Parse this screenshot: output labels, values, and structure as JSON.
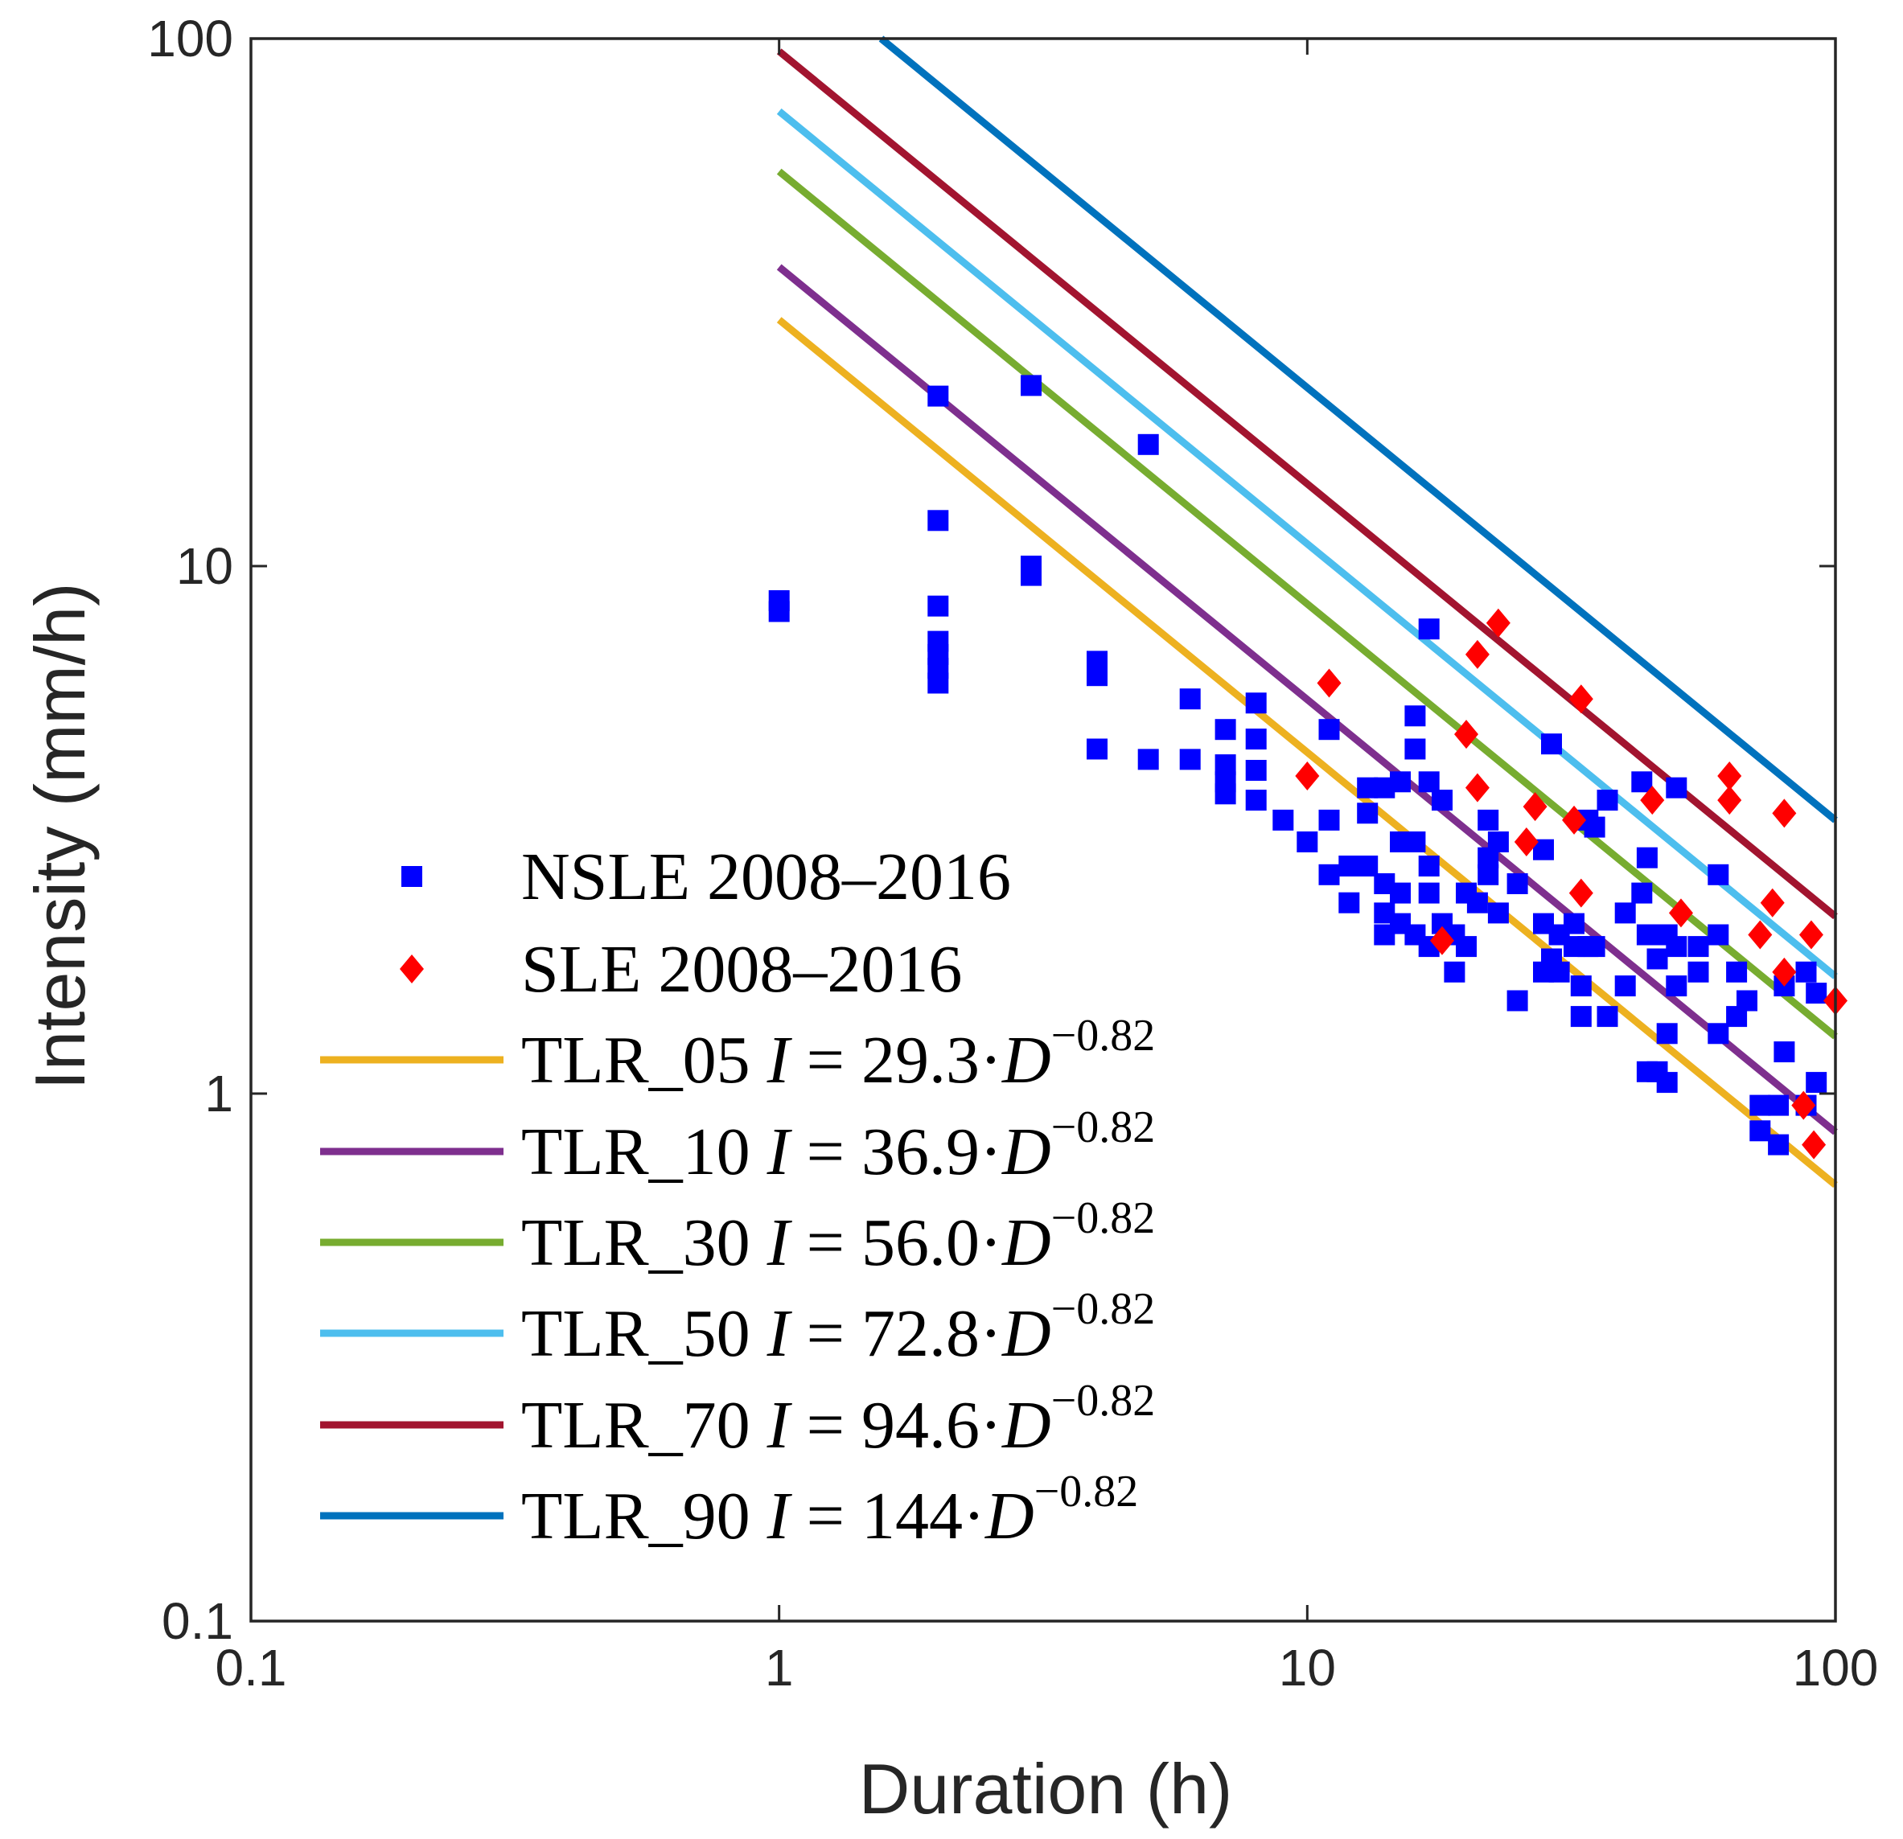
{
  "chart_data": {
    "type": "scatter",
    "title": "",
    "xlabel": "Duration (h)",
    "ylabel": "Intensity (mm/h)",
    "x_scale": "log",
    "y_scale": "log",
    "xlim": [
      0.1,
      100
    ],
    "ylim": [
      0.1,
      100
    ],
    "x_ticks": [
      "0.1",
      "1",
      "10",
      "100"
    ],
    "y_ticks": [
      "0.1",
      "1",
      "10",
      "100"
    ],
    "legend_position": "bottom-left",
    "scatter_series": [
      {
        "name": "NSLE 2008–2016",
        "marker": "square",
        "color": "#0000ff",
        "points": [
          [
            1,
            8.2
          ],
          [
            1,
            8.6
          ],
          [
            2,
            21
          ],
          [
            2,
            12.2
          ],
          [
            2,
            8.4
          ],
          [
            2,
            7.2
          ],
          [
            2,
            6.8
          ],
          [
            2,
            6.4
          ],
          [
            2,
            6.0
          ],
          [
            3,
            22
          ],
          [
            3,
            10
          ],
          [
            3,
            9.6
          ],
          [
            4,
            6.6
          ],
          [
            4,
            6.2
          ],
          [
            4,
            4.5
          ],
          [
            5,
            17
          ],
          [
            5,
            4.3
          ],
          [
            6,
            5.6
          ],
          [
            6,
            4.3
          ],
          [
            7,
            4.9
          ],
          [
            7,
            4.2
          ],
          [
            7,
            3.9
          ],
          [
            7,
            3.7
          ],
          [
            8,
            5.5
          ],
          [
            8,
            4.7
          ],
          [
            8,
            4.1
          ],
          [
            8,
            3.6
          ],
          [
            9,
            3.3
          ],
          [
            10,
            3.0
          ],
          [
            11,
            4.9
          ],
          [
            11,
            3.3
          ],
          [
            11,
            2.6
          ],
          [
            12,
            2.7
          ],
          [
            12,
            2.3
          ],
          [
            13,
            3.8
          ],
          [
            13,
            3.4
          ],
          [
            13,
            2.7
          ],
          [
            14,
            3.8
          ],
          [
            14,
            2.5
          ],
          [
            14,
            2.2
          ],
          [
            14,
            2.0
          ],
          [
            15,
            3.9
          ],
          [
            15,
            3.0
          ],
          [
            15,
            2.4
          ],
          [
            15,
            2.1
          ],
          [
            16,
            5.2
          ],
          [
            16,
            4.5
          ],
          [
            16,
            3.0
          ],
          [
            16,
            2.0
          ],
          [
            17,
            7.6
          ],
          [
            17,
            3.9
          ],
          [
            17,
            2.7
          ],
          [
            17,
            2.4
          ],
          [
            17,
            1.9
          ],
          [
            18,
            3.6
          ],
          [
            18,
            2.1
          ],
          [
            19,
            2.0
          ],
          [
            19,
            1.7
          ],
          [
            20,
            2.4
          ],
          [
            20,
            1.9
          ],
          [
            21,
            2.3
          ],
          [
            22,
            3.3
          ],
          [
            22,
            2.8
          ],
          [
            22,
            2.6
          ],
          [
            23,
            3.0
          ],
          [
            23,
            2.2
          ],
          [
            25,
            2.5
          ],
          [
            25,
            1.5
          ],
          [
            28,
            2.9
          ],
          [
            28,
            2.1
          ],
          [
            28,
            1.7
          ],
          [
            29,
            4.6
          ],
          [
            29,
            1.8
          ],
          [
            30,
            2.0
          ],
          [
            30,
            1.7
          ],
          [
            32,
            2.1
          ],
          [
            32,
            1.9
          ],
          [
            33,
            1.6
          ],
          [
            33,
            1.4
          ],
          [
            34,
            3.3
          ],
          [
            34,
            1.9
          ],
          [
            35,
            3.2
          ],
          [
            35,
            1.9
          ],
          [
            37,
            3.6
          ],
          [
            37,
            1.4
          ],
          [
            40,
            2.2
          ],
          [
            40,
            1.6
          ],
          [
            43,
            3.9
          ],
          [
            43,
            2.4
          ],
          [
            44,
            2.8
          ],
          [
            44,
            2.0
          ],
          [
            44,
            1.1
          ],
          [
            46,
            1.8
          ],
          [
            46,
            1.1
          ],
          [
            48,
            2.0
          ],
          [
            48,
            1.3
          ],
          [
            48,
            1.05
          ],
          [
            50,
            3.8
          ],
          [
            50,
            1.9
          ],
          [
            50,
            1.6
          ],
          [
            55,
            1.9
          ],
          [
            55,
            1.7
          ],
          [
            60,
            2.6
          ],
          [
            60,
            2.0
          ],
          [
            60,
            1.3
          ],
          [
            65,
            1.7
          ],
          [
            65,
            1.4
          ],
          [
            68,
            1.5
          ],
          [
            72,
            0.95
          ],
          [
            72,
            0.85
          ],
          [
            78,
            0.8
          ],
          [
            78,
            0.95
          ],
          [
            80,
            1.2
          ],
          [
            80,
            1.6
          ],
          [
            88,
            1.7
          ],
          [
            88,
            0.95
          ],
          [
            92,
            1.05
          ],
          [
            92,
            1.55
          ]
        ]
      },
      {
        "name": "SLE 2008–2016",
        "marker": "diamond",
        "color": "#ff0000",
        "points": [
          [
            10,
            4.0
          ],
          [
            11,
            6.0
          ],
          [
            18,
            1.95
          ],
          [
            20,
            4.8
          ],
          [
            21,
            6.8
          ],
          [
            21,
            3.8
          ],
          [
            23,
            7.8
          ],
          [
            26,
            3.0
          ],
          [
            27,
            3.5
          ],
          [
            32,
            3.3
          ],
          [
            33,
            2.4
          ],
          [
            33,
            5.6
          ],
          [
            45,
            3.6
          ],
          [
            51,
            2.2
          ],
          [
            63,
            4.0
          ],
          [
            63,
            3.6
          ],
          [
            72,
            2.0
          ],
          [
            76,
            2.3
          ],
          [
            80,
            3.4
          ],
          [
            80,
            1.7
          ],
          [
            87,
            0.95
          ],
          [
            90,
            2.0
          ],
          [
            91,
            0.8
          ],
          [
            100,
            1.5
          ]
        ]
      }
    ],
    "line_series": [
      {
        "name": "TLR_05",
        "coefficient": 29.3,
        "coef_label": "29.3",
        "exponent": -0.82,
        "exp_label": "−0.82",
        "color": "#EDB120",
        "x_range": [
          1,
          100
        ]
      },
      {
        "name": "TLR_10",
        "coefficient": 36.9,
        "coef_label": "36.9",
        "exponent": -0.82,
        "exp_label": "−0.82",
        "color": "#7E2F8E",
        "x_range": [
          1,
          100
        ]
      },
      {
        "name": "TLR_30",
        "coefficient": 56.0,
        "coef_label": "56.0",
        "exponent": -0.82,
        "exp_label": "−0.82",
        "color": "#77AC30",
        "x_range": [
          1,
          100
        ]
      },
      {
        "name": "TLR_50",
        "coefficient": 72.8,
        "coef_label": "72.8",
        "exponent": -0.82,
        "exp_label": "−0.82",
        "color": "#4DBEEE",
        "x_range": [
          1,
          100
        ]
      },
      {
        "name": "TLR_70",
        "coefficient": 94.6,
        "coef_label": "94.6",
        "exponent": -0.82,
        "exp_label": "−0.82",
        "color": "#A2142F",
        "x_range": [
          1,
          100
        ]
      },
      {
        "name": "TLR_90",
        "coefficient": 144,
        "coef_label": "144",
        "exponent": -0.82,
        "exp_label": "−0.82",
        "color": "#0072BD",
        "x_range": [
          1,
          100
        ]
      }
    ],
    "legend_eq_prefix": "I",
    "legend_eq_var": "D"
  }
}
